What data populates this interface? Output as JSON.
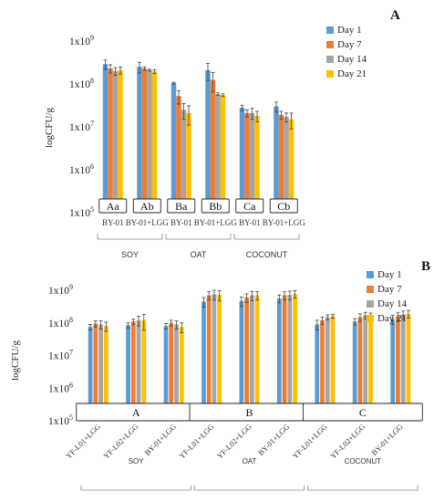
{
  "chart_data": [
    {
      "type": "bar",
      "panel_letter": "A",
      "ylabel": "logCFU/g",
      "yscale": "log",
      "ylim": [
        100000,
        1000000000
      ],
      "ytick_labels": [
        "1x10",
        "1x10",
        "1x10",
        "1x10",
        "1x10"
      ],
      "ytick_exponents": [
        "9",
        "8",
        "7",
        "6",
        "5"
      ],
      "legend_position": "top-right",
      "categories": [
        "BY-01",
        "BY-01+LGG",
        "BY-01",
        "BY-01+LGG",
        "BY-01",
        "BY-01+LGG"
      ],
      "groups": [
        {
          "label": "SOY",
          "span": [
            0,
            1
          ]
        },
        {
          "label": "OAT",
          "span": [
            2,
            3
          ]
        },
        {
          "label": "COCONUT",
          "span": [
            4,
            5
          ]
        }
      ],
      "box_labels": [
        "Aa",
        "Ab",
        "Ba",
        "Bb",
        "Ca",
        "Cb"
      ],
      "series": [
        {
          "name": "Day 1",
          "color": "#5B9BD5",
          "values": [
            290000000,
            250000000,
            105000000,
            210000000,
            28000000,
            30000000
          ],
          "errors": [
            70000000,
            70000000,
            5000000,
            90000000,
            4000000,
            8000000
          ]
        },
        {
          "name": "Day 7",
          "color": "#ED7D31",
          "values": [
            230000000,
            230000000,
            52000000,
            125000000,
            21000000,
            19000000
          ],
          "errors": [
            50000000,
            20000000,
            18000000,
            60000000,
            4000000,
            4000000
          ]
        },
        {
          "name": "Day 14",
          "color": "#A5A5A5",
          "values": [
            200000000,
            210000000,
            25000000,
            58000000,
            21000000,
            17000000
          ],
          "errors": [
            40000000,
            10000000,
            10000000,
            4000000,
            6000000,
            4000000
          ]
        },
        {
          "name": "Day 21",
          "color": "#FFC000",
          "values": [
            210000000,
            195000000,
            21000000,
            55000000,
            18000000,
            15000000
          ],
          "errors": [
            40000000,
            20000000,
            10000000,
            4000000,
            5000000,
            6000000
          ]
        }
      ]
    },
    {
      "type": "bar",
      "panel_letter": "B",
      "ylabel": "logCFU/g",
      "yscale": "log",
      "ylim": [
        100000,
        1000000000
      ],
      "ytick_labels": [
        "1x10",
        "1x10",
        "1x10",
        "1x10",
        "1x10"
      ],
      "ytick_exponents": [
        "9",
        "8",
        "7",
        "6",
        "5"
      ],
      "legend_position": "top-right",
      "categories": [
        "YF-L01+LGG",
        "YF-L02+LGG",
        "BY-01+LGG",
        "YF-L01+LGG",
        "YF-L02+LGG",
        "BY-01+LGG",
        "YF-L01+LGG",
        "YF-L02+LGG",
        "BY-01+LGG"
      ],
      "groups": [
        {
          "label": "SOY",
          "span": [
            0,
            2
          ]
        },
        {
          "label": "OAT",
          "span": [
            3,
            5
          ]
        },
        {
          "label": "COCONUT",
          "span": [
            6,
            8
          ]
        }
      ],
      "box_labels": [
        "A",
        "B",
        "C"
      ],
      "series": [
        {
          "name": "Day 1",
          "color": "#5B9BD5",
          "values": [
            75000000,
            85000000,
            80000000,
            450000000,
            470000000,
            560000000,
            90000000,
            110000000,
            130000000
          ],
          "errors": [
            15000000,
            15000000,
            15000000,
            150000000,
            150000000,
            150000000,
            30000000,
            25000000,
            40000000
          ]
        },
        {
          "name": "Day 7",
          "color": "#ED7D31",
          "values": [
            95000000,
            110000000,
            100000000,
            700000000,
            600000000,
            700000000,
            120000000,
            150000000,
            160000000
          ],
          "errors": [
            20000000,
            20000000,
            20000000,
            200000000,
            180000000,
            200000000,
            30000000,
            40000000,
            50000000
          ]
        },
        {
          "name": "Day 14",
          "color": "#A5A5A5",
          "values": [
            90000000,
            120000000,
            90000000,
            750000000,
            700000000,
            720000000,
            150000000,
            170000000,
            180000000
          ],
          "errors": [
            25000000,
            40000000,
            25000000,
            250000000,
            220000000,
            220000000,
            25000000,
            40000000,
            50000000
          ]
        },
        {
          "name": "Day 21",
          "color": "#FFC000",
          "values": [
            80000000,
            120000000,
            75000000,
            720000000,
            700000000,
            770000000,
            160000000,
            170000000,
            190000000
          ],
          "errors": [
            25000000,
            60000000,
            25000000,
            250000000,
            200000000,
            200000000,
            20000000,
            30000000,
            50000000
          ]
        }
      ]
    }
  ]
}
